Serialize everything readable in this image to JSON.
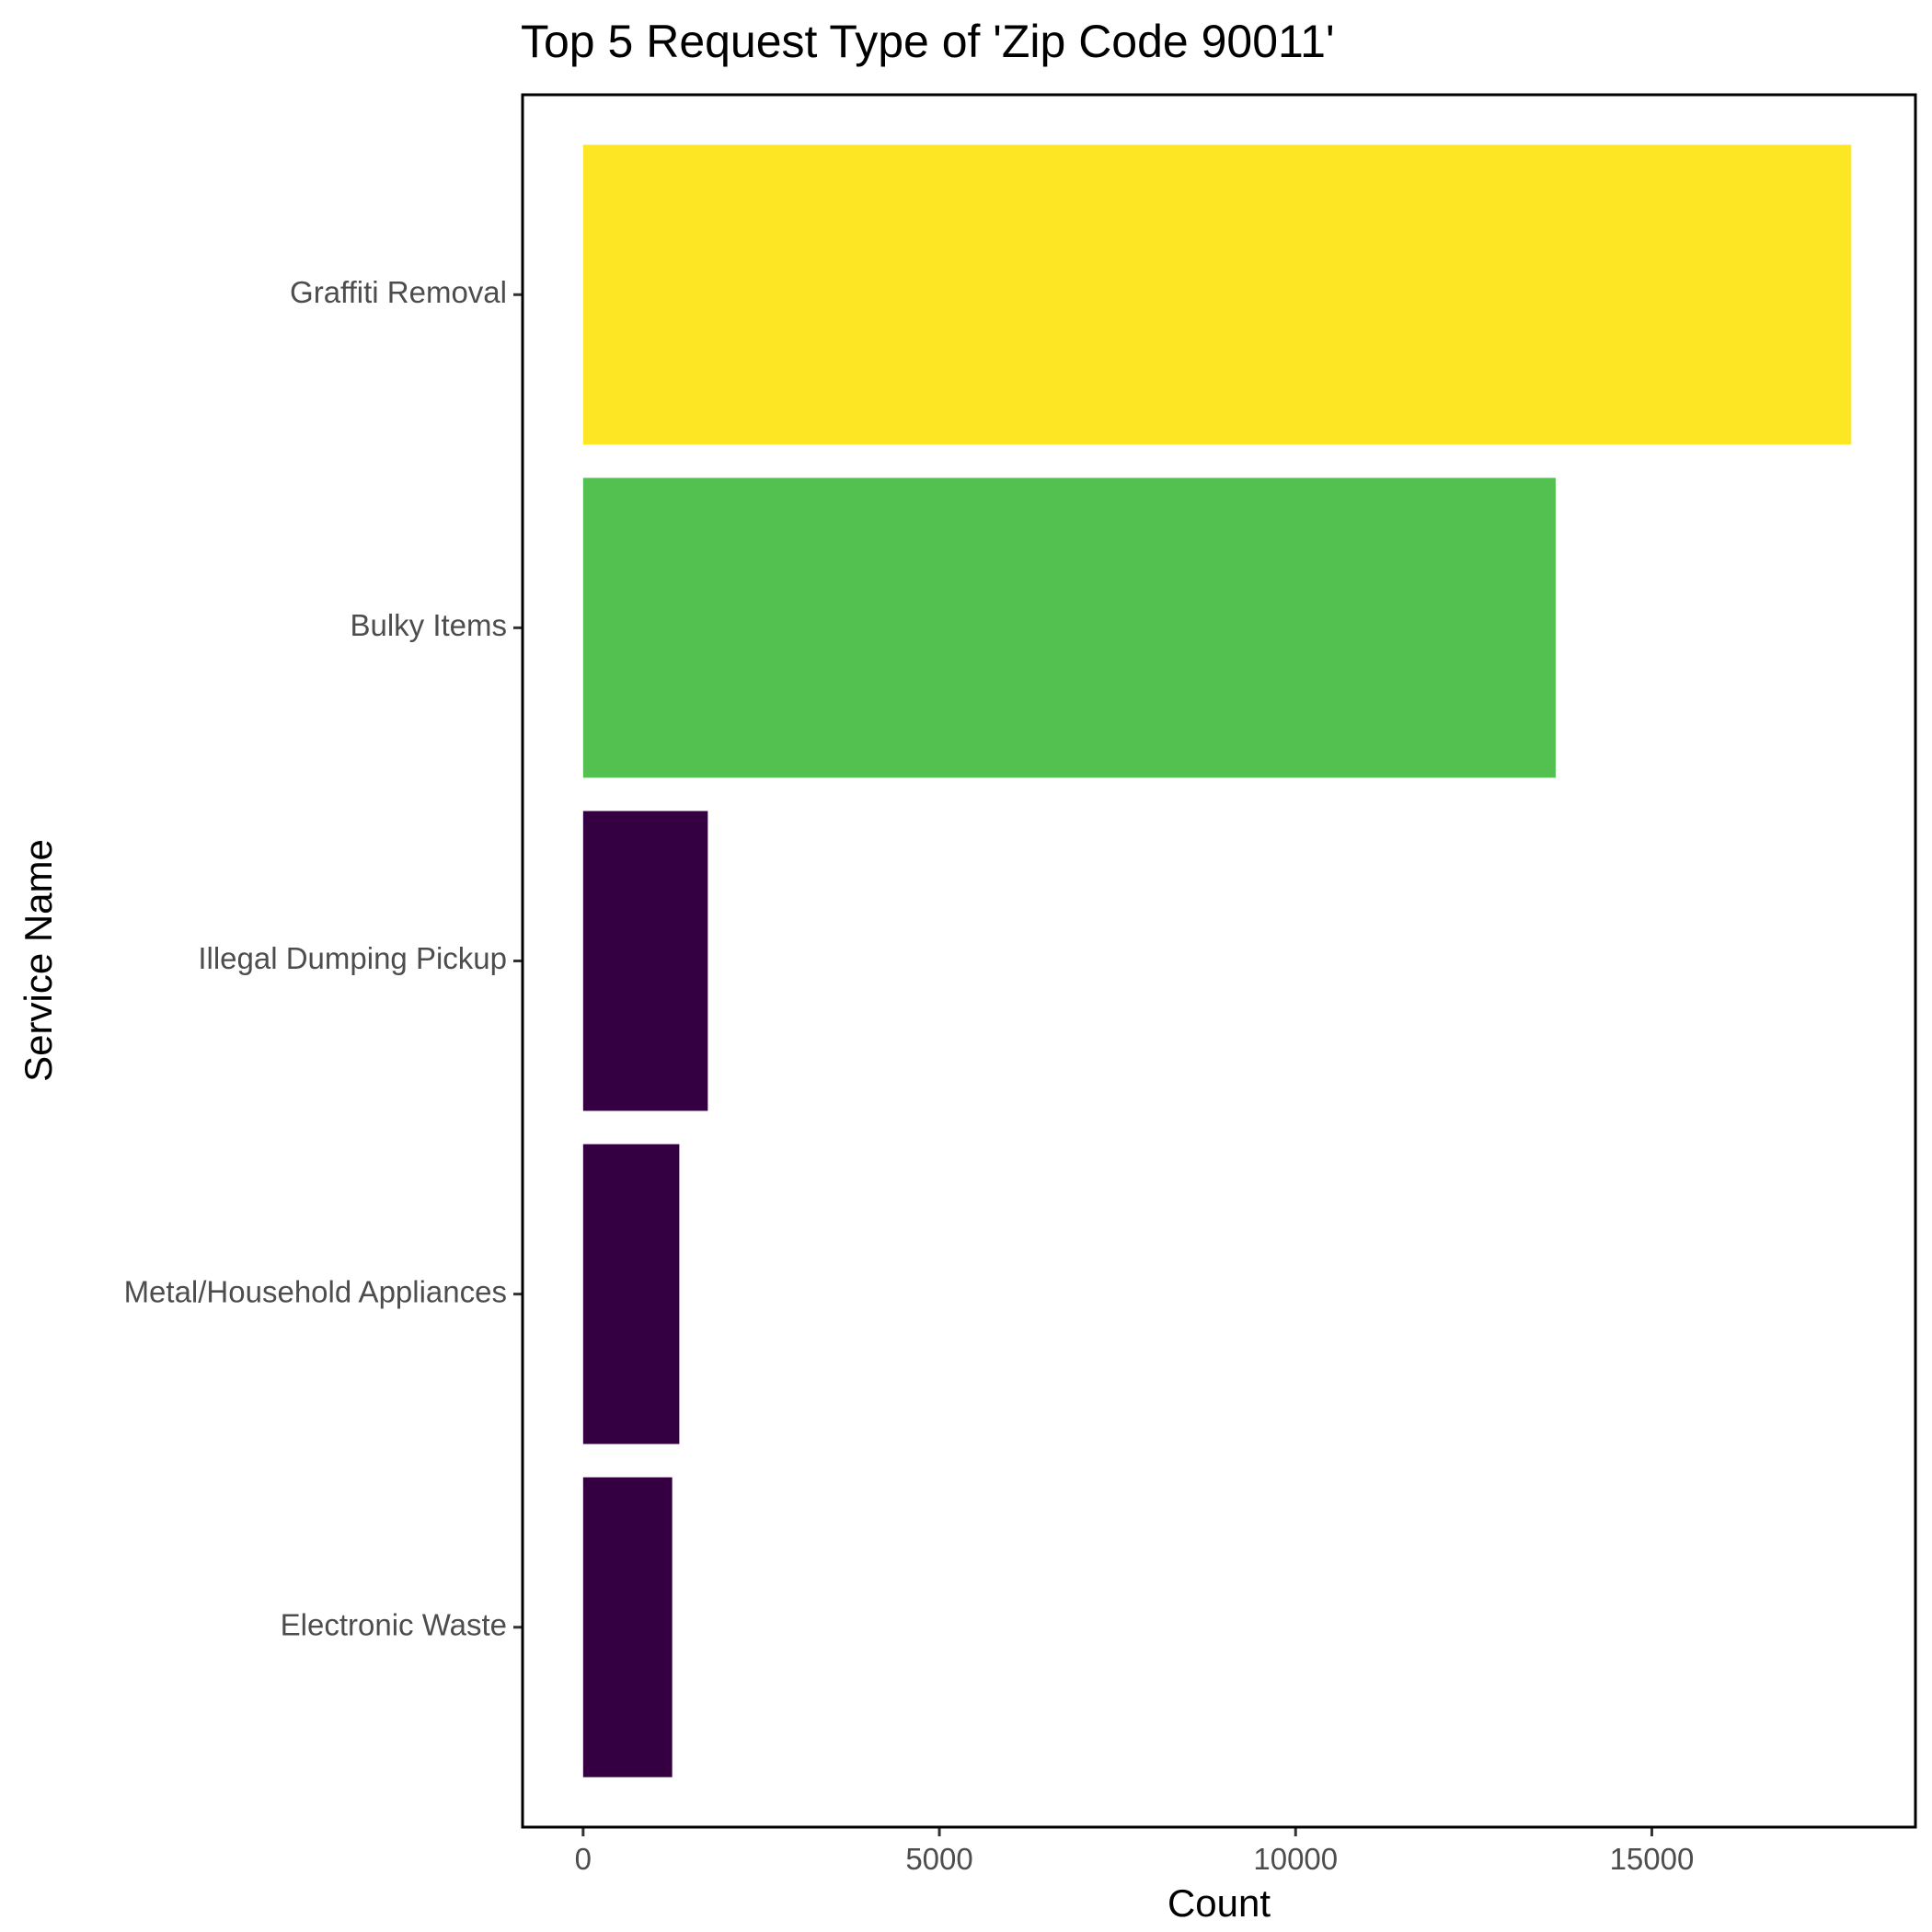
{
  "chart_data": {
    "type": "bar",
    "orientation": "horizontal",
    "title": "Top 5 Request Type of 'Zip Code 90011'",
    "xlabel": "Count",
    "ylabel": "Service Name",
    "categories": [
      "Graffiti Removal",
      "Bulky Items",
      "Illegal Dumping Pickup",
      "Metal/Household Appliances",
      "Electronic Waste"
    ],
    "values": [
      17800,
      13650,
      1750,
      1350,
      1250
    ],
    "colors": [
      "#FDE725",
      "#52C150",
      "#340042",
      "#340042",
      "#340042"
    ],
    "xlim": [
      -850,
      18700
    ],
    "xticks": [
      0,
      5000,
      10000,
      15000
    ],
    "xtick_labels": [
      "0",
      "5000",
      "10000",
      "15000"
    ],
    "grid": false,
    "legend": "none"
  }
}
